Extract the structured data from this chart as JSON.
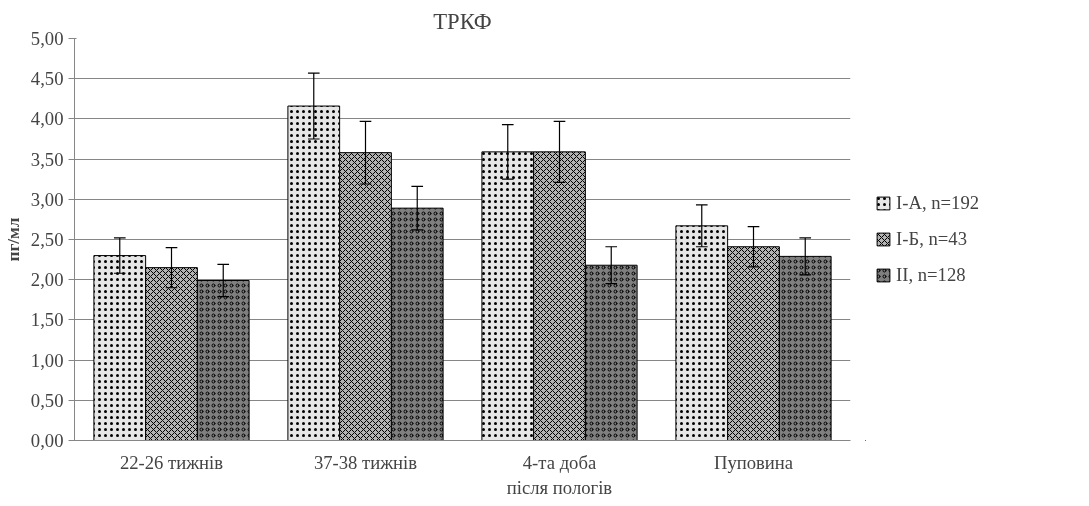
{
  "chart_data": {
    "type": "bar",
    "title": "ТРКФ",
    "ylabel": "пг/мл",
    "categories": [
      "22-26 тижнів",
      "37-38 тижнів",
      "4-та доба\nпісля пологів",
      "Пуповина"
    ],
    "series": [
      {
        "name": "І-А, n=192",
        "color": "#e6e6e6",
        "values": [
          2.3,
          4.16,
          3.59,
          2.67
        ],
        "errors": [
          0.22,
          0.41,
          0.34,
          0.26
        ]
      },
      {
        "name": "І-Б, n=43",
        "color": "#b3b3b3",
        "values": [
          2.15,
          3.58,
          3.59,
          2.41
        ],
        "errors": [
          0.25,
          0.39,
          0.38,
          0.25
        ]
      },
      {
        "name": "ІІ, n=128",
        "color": "#7f7f7f",
        "values": [
          1.99,
          2.89,
          2.18,
          2.29
        ],
        "errors": [
          0.2,
          0.27,
          0.23,
          0.23
        ]
      }
    ],
    "ylim": [
      0,
      5
    ],
    "yticks": [
      {
        "value": 0,
        "label": "0,00"
      },
      {
        "value": 0.5,
        "label": "0,50"
      },
      {
        "value": 1,
        "label": "1,00"
      },
      {
        "value": 1.5,
        "label": "1,50"
      },
      {
        "value": 2,
        "label": "2,00"
      },
      {
        "value": 2.5,
        "label": "2,50"
      },
      {
        "value": 3,
        "label": "3,00"
      },
      {
        "value": 3.5,
        "label": "3,50"
      },
      {
        "value": 4,
        "label": "4,00"
      },
      {
        "value": 4.5,
        "label": "4,50"
      },
      {
        "value": 5,
        "label": "5,00"
      }
    ],
    "grid": "y",
    "legend": "right"
  }
}
